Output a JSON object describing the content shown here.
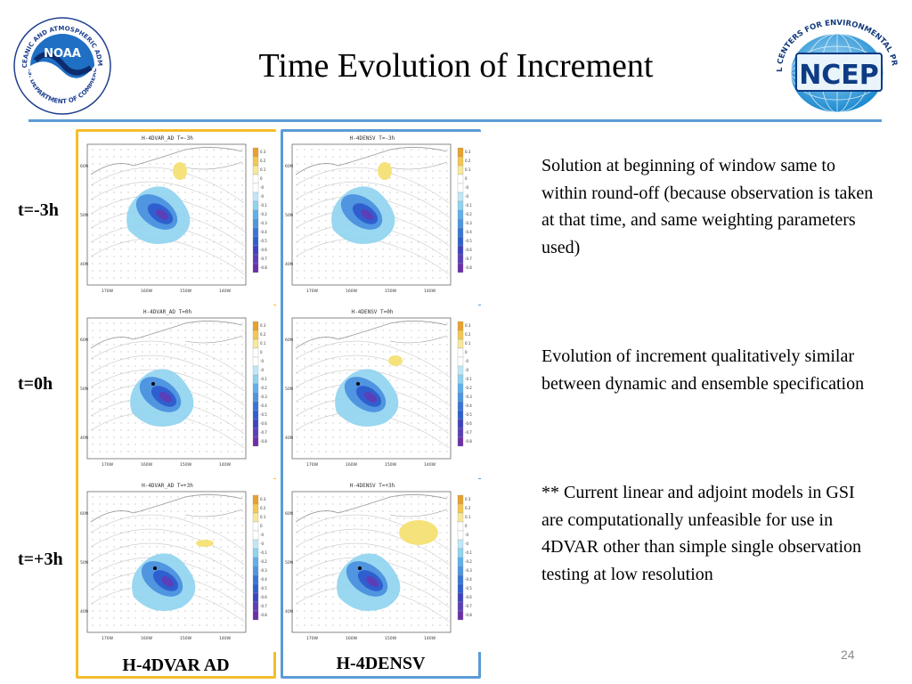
{
  "slide": {
    "title": "Time Evolution of Increment",
    "page_number": "24"
  },
  "logos": {
    "noaa": {
      "center_text": "NOAA",
      "ring_top_text": "NATIONAL OCEANIC AND ATMOSPHERIC ADMINISTRATION",
      "ring_bottom_text": "U.S. DEPARTMENT OF COMMERCE"
    },
    "ncep": {
      "center_text": "NCEP",
      "arc_text": "NATIONAL CENTERS FOR ENVIRONMENTAL PREDICTION"
    }
  },
  "rows": [
    {
      "label": "t=-3h"
    },
    {
      "label": "t=0h"
    },
    {
      "label": "t=+3h"
    }
  ],
  "columns": [
    {
      "label": "H-4DVAR  AD"
    },
    {
      "label": "H-4DENSV"
    }
  ],
  "panels": [
    {
      "header": "H-4DVAR_AD  T=-3h"
    },
    {
      "header": "H-4DENSV  T=-3h"
    },
    {
      "header": "H-4DVAR_AD  T=0h"
    },
    {
      "header": "H-4DENSV  T=0h"
    },
    {
      "header": "H-4DVAR_AD  T=+3h"
    },
    {
      "header": "H-4DENSV  T=+3h"
    }
  ],
  "map_axes": {
    "lat_labels": [
      "60N",
      "50N",
      "40N"
    ],
    "lon_labels": [
      "170W",
      "160W",
      "150W",
      "140W"
    ]
  },
  "colorbar_ticks": [
    "0.3",
    "0.2",
    "0.1",
    "0",
    "-0",
    "-0",
    "-0.1",
    "-0.2",
    "-0.3",
    "-0.4",
    "-0.5",
    "-0.6",
    "-0.7",
    "-0.8"
  ],
  "colors": {
    "ad_frame": "#f4bd2a",
    "ensemble_frame": "#5b9bd5",
    "rule": "#5b9bd5"
  },
  "bullets": [
    "Solution at beginning of window same to within round-off (because observation is taken at that time, and same weighting parameters used)",
    "Evolution of increment qualitatively similar between dynamic and ensemble specification",
    "** Current linear and adjoint models in GSI are computationally unfeasible for use in 4DVAR other than simple single observation testing at low resolution"
  ]
}
